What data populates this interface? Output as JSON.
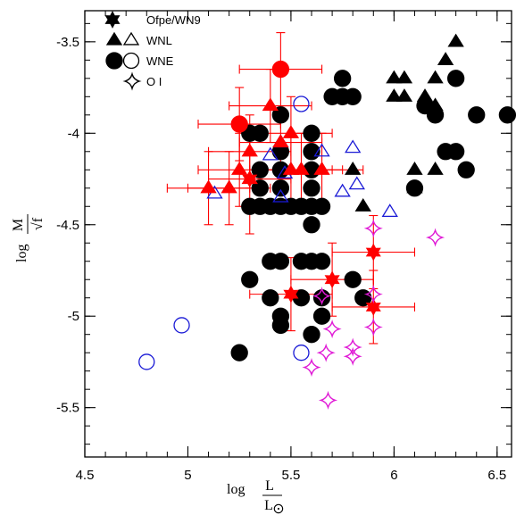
{
  "chart_data": {
    "type": "scatter",
    "title": "",
    "xlabel": {
      "prefix": "log",
      "numerator": "L",
      "denominator": "L",
      "subscript": "⊙"
    },
    "ylabel": {
      "prefix": "log",
      "numerator": "M",
      "denominator": "√f"
    },
    "xlim": [
      4.5,
      6.57
    ],
    "ylim": [
      -5.77,
      -3.33
    ],
    "x_ticks": [
      {
        "value": 4.5,
        "label": "4.5"
      },
      {
        "value": 5,
        "label": "5"
      },
      {
        "value": 5.5,
        "label": "5.5"
      },
      {
        "value": 6,
        "label": "6"
      },
      {
        "value": 6.5,
        "label": "6.5"
      }
    ],
    "y_ticks": [
      {
        "value": -3.5,
        "label": "-3.5"
      },
      {
        "value": -4,
        "label": "-4"
      },
      {
        "value": -4.5,
        "label": "-4.5"
      },
      {
        "value": -5,
        "label": "-5"
      },
      {
        "value": -5.5,
        "label": "-5.5"
      }
    ],
    "minor_tick_step": 0.1,
    "legend": {
      "placement": "top-left",
      "entries": [
        {
          "label": "Ofpe/WN9",
          "symbols": [
            "star-filled"
          ]
        },
        {
          "label": "WNL",
          "symbols": [
            "triangle-filled",
            "triangle-open"
          ]
        },
        {
          "label": "WNE",
          "symbols": [
            "circle-filled",
            "circle-open"
          ]
        },
        {
          "label": "O I",
          "symbols": [
            "astroid-open"
          ]
        }
      ]
    },
    "series": [
      {
        "marker": "circle",
        "fill": "#000000",
        "stroke": "#000000",
        "points": [
          [
            5.25,
            -5.2
          ],
          [
            5.3,
            -4.8
          ],
          [
            5.3,
            -4.0
          ],
          [
            5.35,
            -4.0
          ],
          [
            5.35,
            -4.2
          ],
          [
            5.35,
            -4.3
          ],
          [
            5.35,
            -4.4
          ],
          [
            5.3,
            -4.4
          ],
          [
            5.4,
            -4.4
          ],
          [
            5.45,
            -4.4
          ],
          [
            5.5,
            -4.4
          ],
          [
            5.55,
            -4.4
          ],
          [
            5.6,
            -4.4
          ],
          [
            5.65,
            -4.4
          ],
          [
            5.45,
            -3.9
          ],
          [
            5.45,
            -4.1
          ],
          [
            5.45,
            -4.2
          ],
          [
            5.45,
            -4.3
          ],
          [
            5.6,
            -4.0
          ],
          [
            5.6,
            -4.1
          ],
          [
            5.6,
            -4.2
          ],
          [
            5.6,
            -4.3
          ],
          [
            5.6,
            -4.5
          ],
          [
            5.4,
            -4.7
          ],
          [
            5.45,
            -4.7
          ],
          [
            5.55,
            -4.7
          ],
          [
            5.6,
            -4.7
          ],
          [
            5.65,
            -4.7
          ],
          [
            5.4,
            -4.9
          ],
          [
            5.45,
            -5.0
          ],
          [
            5.45,
            -5.05
          ],
          [
            5.55,
            -4.9
          ],
          [
            5.6,
            -5.1
          ],
          [
            5.65,
            -5.0
          ],
          [
            5.65,
            -4.9
          ],
          [
            5.7,
            -3.8
          ],
          [
            5.75,
            -3.7
          ],
          [
            5.75,
            -3.8
          ],
          [
            5.8,
            -3.8
          ],
          [
            5.8,
            -4.8
          ],
          [
            5.85,
            -4.9
          ],
          [
            6.1,
            -4.3
          ],
          [
            6.25,
            -4.1
          ],
          [
            6.3,
            -3.7
          ],
          [
            6.3,
            -4.1
          ],
          [
            6.35,
            -4.2
          ],
          [
            6.4,
            -3.9
          ],
          [
            6.55,
            -3.9
          ],
          [
            6.2,
            -3.9
          ],
          [
            6.15,
            -3.85
          ]
        ]
      },
      {
        "marker": "circle-open",
        "fill": "none",
        "stroke": "#1a1ad6",
        "points": [
          [
            4.8,
            -5.25
          ],
          [
            4.97,
            -5.05
          ],
          [
            5.55,
            -5.2
          ],
          [
            5.55,
            -3.84
          ]
        ]
      },
      {
        "marker": "triangle",
        "fill": "#000000",
        "stroke": "#000000",
        "points": [
          [
            5.85,
            -4.4
          ],
          [
            5.8,
            -4.2
          ],
          [
            6.0,
            -3.7
          ],
          [
            6.0,
            -3.8
          ],
          [
            6.05,
            -3.7
          ],
          [
            6.05,
            -3.8
          ],
          [
            6.1,
            -4.2
          ],
          [
            6.15,
            -3.8
          ],
          [
            6.2,
            -3.7
          ],
          [
            6.2,
            -3.85
          ],
          [
            6.2,
            -4.2
          ],
          [
            6.25,
            -3.6
          ],
          [
            6.3,
            -3.5
          ],
          [
            6.1,
            -4.3
          ]
        ]
      },
      {
        "marker": "triangle-open",
        "fill": "none",
        "stroke": "#1a1ad6",
        "points": [
          [
            5.13,
            -4.33
          ],
          [
            5.4,
            -4.12
          ],
          [
            5.45,
            -4.05
          ],
          [
            5.47,
            -4.22
          ],
          [
            5.45,
            -4.35
          ],
          [
            5.65,
            -4.1
          ],
          [
            5.75,
            -4.32
          ],
          [
            5.8,
            -4.08
          ],
          [
            5.82,
            -4.28
          ],
          [
            5.98,
            -4.43
          ]
        ]
      },
      {
        "marker": "circle",
        "fill": "#ff0000",
        "stroke": "#ff0000",
        "points": [
          [
            5.45,
            -3.65
          ],
          [
            5.25,
            -3.95
          ]
        ]
      },
      {
        "marker": "triangle",
        "fill": "#ff0000",
        "stroke": "#ff0000",
        "points": [
          [
            5.1,
            -4.3
          ],
          [
            5.2,
            -4.3
          ],
          [
            5.25,
            -4.2
          ],
          [
            5.3,
            -4.1
          ],
          [
            5.3,
            -4.25
          ],
          [
            5.4,
            -3.85
          ],
          [
            5.45,
            -4.05
          ],
          [
            5.5,
            -4.0
          ],
          [
            5.5,
            -4.2
          ],
          [
            5.55,
            -4.2
          ],
          [
            5.65,
            -4.2
          ]
        ]
      },
      {
        "marker": "star",
        "fill": "#ff0000",
        "stroke": "#ff0000",
        "points": [
          [
            5.9,
            -4.65
          ],
          [
            5.7,
            -4.8
          ],
          [
            5.5,
            -4.88
          ],
          [
            5.9,
            -4.95
          ],
          [
            5.3,
            -4.25
          ]
        ]
      },
      {
        "marker": "astroid",
        "fill": "none",
        "stroke": "#e01ad6",
        "points": [
          [
            5.9,
            -4.52
          ],
          [
            6.2,
            -4.57
          ],
          [
            5.65,
            -4.89
          ],
          [
            5.7,
            -5.07
          ],
          [
            5.9,
            -4.88
          ],
          [
            5.9,
            -5.06
          ],
          [
            5.6,
            -5.28
          ],
          [
            5.67,
            -5.2
          ],
          [
            5.8,
            -5.17
          ],
          [
            5.8,
            -5.22
          ],
          [
            5.68,
            -5.46
          ]
        ]
      }
    ],
    "error_bars": [
      {
        "x": 5.45,
        "y": -3.65,
        "xerr": 0.2,
        "yerr_plus": 0.2,
        "yerr_minus": 0.2
      },
      {
        "x": 5.25,
        "y": -3.95,
        "xerr": 0.2,
        "yerr_plus": 0.2,
        "yerr_minus": 0.2
      },
      {
        "x": 5.1,
        "y": -4.3,
        "xerr": 0.2,
        "yerr_plus": 0.2,
        "yerr_minus": 0.2
      },
      {
        "x": 5.2,
        "y": -4.3,
        "xerr": 0.2,
        "yerr_plus": 0.2,
        "yerr_minus": 0.2
      },
      {
        "x": 5.25,
        "y": -4.2,
        "xerr": 0.2,
        "yerr_plus": 0.2,
        "yerr_minus": 0.2
      },
      {
        "x": 5.3,
        "y": -4.1,
        "xerr": 0.2,
        "yerr_plus": 0.2,
        "yerr_minus": 0.2
      },
      {
        "x": 5.3,
        "y": -4.25,
        "xerr": 0.2,
        "yerr_plus": 0.3,
        "yerr_minus": 0.3
      },
      {
        "x": 5.4,
        "y": -3.85,
        "xerr": 0.2,
        "yerr_plus": 0.2,
        "yerr_minus": 0.2
      },
      {
        "x": 5.45,
        "y": -4.05,
        "xerr": 0.2,
        "yerr_plus": 0.2,
        "yerr_minus": 0.2
      },
      {
        "x": 5.5,
        "y": -4.0,
        "xerr": 0.2,
        "yerr_plus": 0.2,
        "yerr_minus": 0.2
      },
      {
        "x": 5.5,
        "y": -4.2,
        "xerr": 0.2,
        "yerr_plus": 0.2,
        "yerr_minus": 0.2
      },
      {
        "x": 5.55,
        "y": -4.2,
        "xerr": 0.2,
        "yerr_plus": 0.2,
        "yerr_minus": 0.2
      },
      {
        "x": 5.65,
        "y": -4.2,
        "xerr": 0.2,
        "yerr_plus": 0.2,
        "yerr_minus": 0.2
      },
      {
        "x": 5.9,
        "y": -4.65,
        "xerr": 0.2,
        "yerr_plus": 0.2,
        "yerr_minus": 0.2
      },
      {
        "x": 5.7,
        "y": -4.8,
        "xerr": 0.2,
        "yerr_plus": 0.2,
        "yerr_minus": 0.2
      },
      {
        "x": 5.5,
        "y": -4.88,
        "xerr": 0.2,
        "yerr_plus": 0.2,
        "yerr_minus": 0.2
      },
      {
        "x": 5.9,
        "y": -4.95,
        "xerr": 0.2,
        "yerr_plus": 0.2,
        "yerr_minus": 0.2
      }
    ],
    "error_bar_color": "#ff0000"
  }
}
